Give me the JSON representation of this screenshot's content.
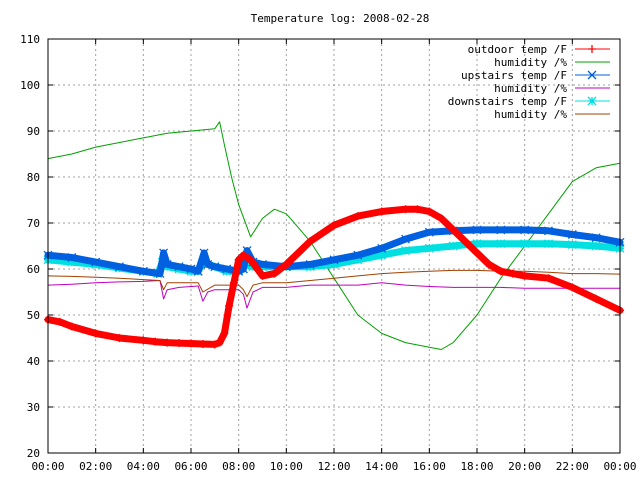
{
  "chart_data": {
    "type": "line",
    "title": "Temperature log: 2008-02-28",
    "xlabel": "",
    "ylabel": "",
    "xlim": [
      0,
      24
    ],
    "ylim": [
      20,
      110
    ],
    "grid": true,
    "legend_position": "top-right",
    "x_ticks": [
      {
        "v": 0,
        "label": "00:00"
      },
      {
        "v": 2,
        "label": "02:00"
      },
      {
        "v": 4,
        "label": "04:00"
      },
      {
        "v": 6,
        "label": "06:00"
      },
      {
        "v": 8,
        "label": "08:00"
      },
      {
        "v": 10,
        "label": "10:00"
      },
      {
        "v": 12,
        "label": "12:00"
      },
      {
        "v": 14,
        "label": "14:00"
      },
      {
        "v": 16,
        "label": "16:00"
      },
      {
        "v": 18,
        "label": "18:00"
      },
      {
        "v": 20,
        "label": "20:00"
      },
      {
        "v": 22,
        "label": "22:00"
      },
      {
        "v": 24,
        "label": "00:00"
      }
    ],
    "y_ticks": [
      {
        "v": 20,
        "label": "20"
      },
      {
        "v": 30,
        "label": "30"
      },
      {
        "v": 40,
        "label": "40"
      },
      {
        "v": 50,
        "label": "50"
      },
      {
        "v": 60,
        "label": "60"
      },
      {
        "v": 70,
        "label": "70"
      },
      {
        "v": 80,
        "label": "80"
      },
      {
        "v": 90,
        "label": "90"
      },
      {
        "v": 100,
        "label": "100"
      },
      {
        "v": 110,
        "label": "110"
      }
    ],
    "series": [
      {
        "name": "outdoor temp /F",
        "color": "#ff0000",
        "marker": "plus",
        "thick": true,
        "x": [
          0,
          0.5,
          1,
          2,
          3,
          4,
          4.5,
          5,
          5.5,
          6,
          6.5,
          7,
          7.2,
          7.4,
          7.6,
          7.8,
          8,
          8.2,
          8.5,
          9,
          9.5,
          10,
          11,
          12,
          13,
          14,
          15,
          15.5,
          16,
          16.5,
          17,
          17.5,
          18,
          18.5,
          19,
          19.5,
          20,
          21,
          22,
          23,
          24
        ],
        "y": [
          49,
          48.5,
          47.5,
          46,
          45,
          44.5,
          44.2,
          44,
          43.9,
          43.8,
          43.7,
          43.6,
          44,
          46,
          52,
          57,
          62,
          63,
          62,
          58.5,
          59,
          61,
          66,
          69.5,
          71.5,
          72.5,
          73,
          73,
          72.5,
          71,
          68.5,
          66,
          63.5,
          61,
          59.5,
          59,
          58.5,
          58,
          56,
          53.5,
          51
        ]
      },
      {
        "name": "humidity /%",
        "color": "#00a000",
        "marker": "none",
        "thick": false,
        "x": [
          0,
          1,
          2,
          3,
          4,
          5,
          6,
          7,
          7.2,
          7.4,
          7.7,
          8,
          8.5,
          9,
          9.5,
          10,
          10.5,
          11,
          12,
          13,
          14,
          14.5,
          15,
          16,
          16.5,
          17,
          18,
          19,
          20,
          21,
          22,
          23,
          24
        ],
        "y": [
          84,
          85,
          86.5,
          87.5,
          88.5,
          89.5,
          90,
          90.5,
          92,
          87,
          80,
          74,
          67,
          71,
          73,
          72,
          69,
          66,
          58,
          50,
          46,
          45,
          44,
          43,
          42.5,
          44,
          50,
          58,
          65,
          72,
          79,
          82,
          83
        ]
      },
      {
        "name": "upstairs temp /F",
        "color": "#0060e0",
        "marker": "x",
        "thick": true,
        "x": [
          0,
          1,
          2,
          3,
          4,
          4.7,
          4.85,
          5,
          5.5,
          6,
          6.3,
          6.55,
          6.7,
          7,
          7.5,
          8,
          8.2,
          8.35,
          8.6,
          9,
          10,
          11,
          12,
          13,
          14,
          15,
          16,
          17,
          18,
          19,
          20,
          21,
          22,
          23,
          24
        ],
        "y": [
          63,
          62.5,
          61.5,
          60.5,
          59.5,
          59,
          63.5,
          61,
          60.5,
          60,
          59.5,
          63.5,
          61,
          60.5,
          60,
          59.5,
          60,
          64,
          61.5,
          61,
          60.5,
          61,
          62,
          63,
          64.5,
          66.5,
          68,
          68.3,
          68.5,
          68.5,
          68.5,
          68.3,
          67.5,
          66.8,
          65.8
        ]
      },
      {
        "name": "humidity /%",
        "color": "#c000c0",
        "marker": "none",
        "thick": false,
        "x": [
          0,
          1,
          2,
          3,
          4,
          4.7,
          4.85,
          5,
          5.5,
          6.3,
          6.5,
          6.7,
          7,
          8,
          8.2,
          8.35,
          8.6,
          9,
          10,
          11,
          12,
          13,
          14,
          15,
          16,
          17,
          18,
          19,
          20,
          21,
          22,
          23,
          24
        ],
        "y": [
          56.5,
          56.7,
          57,
          57.2,
          57.3,
          57.5,
          53.5,
          55.5,
          56,
          56.3,
          53,
          55,
          55.5,
          55.5,
          54.5,
          51.5,
          55,
          56,
          56,
          56.5,
          56.5,
          56.5,
          57,
          56.5,
          56.2,
          56,
          56,
          56,
          55.8,
          55.8,
          55.8,
          55.8,
          55.8
        ]
      },
      {
        "name": "downstairs temp /F",
        "color": "#00e0e0",
        "marker": "star",
        "thick": true,
        "x": [
          0,
          1,
          2,
          3,
          4,
          4.6,
          4.8,
          5,
          5.5,
          6,
          6.3,
          6.5,
          7,
          7.5,
          8,
          8.3,
          8.6,
          9,
          10,
          11,
          12,
          13,
          14,
          15,
          16,
          17,
          18,
          19,
          20,
          21,
          22,
          23,
          24
        ],
        "y": [
          62,
          61.5,
          61,
          60.2,
          59.5,
          59,
          61.5,
          60.5,
          60,
          59.5,
          59.5,
          61.5,
          60.5,
          59.5,
          59.5,
          61,
          60.5,
          60.5,
          60.5,
          60.5,
          61,
          62,
          63,
          64,
          64.5,
          65,
          65.5,
          65.5,
          65.5,
          65.5,
          65.3,
          65,
          64.5
        ]
      },
      {
        "name": "humidity /%",
        "color": "#a04000",
        "marker": "none",
        "thick": false,
        "x": [
          0,
          1,
          2,
          3,
          4,
          4.7,
          4.85,
          5,
          6,
          6.3,
          6.5,
          7,
          8,
          8.2,
          8.35,
          8.6,
          9,
          10,
          11,
          12,
          13,
          14,
          15,
          16,
          17,
          18,
          19,
          20,
          21,
          22,
          23,
          24
        ],
        "y": [
          58.5,
          58.4,
          58.2,
          58,
          57.7,
          57.5,
          55.5,
          57,
          57,
          57,
          55,
          56.5,
          56.5,
          55.5,
          54,
          56.5,
          57,
          57,
          57.5,
          58,
          58.5,
          59,
          59.3,
          59.5,
          59.7,
          59.7,
          59.5,
          59.5,
          59.3,
          59,
          59,
          58.9
        ]
      }
    ]
  }
}
